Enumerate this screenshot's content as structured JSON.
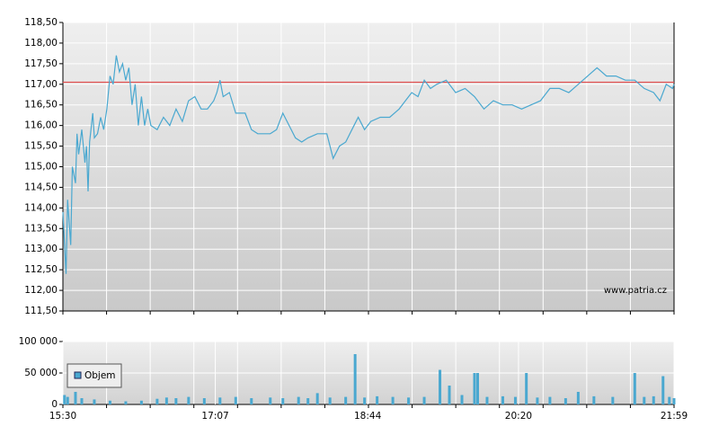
{
  "chart_data": [
    {
      "type": "line",
      "watermark": "www.patria.cz",
      "x": [
        "15:30",
        "15:32",
        "15:33",
        "15:35",
        "15:36",
        "15:38",
        "15:39",
        "15:40",
        "15:42",
        "15:44",
        "15:45",
        "15:46",
        "15:47",
        "15:49",
        "15:50",
        "15:52",
        "15:54",
        "15:56",
        "15:58",
        "16:00",
        "16:02",
        "16:04",
        "16:06",
        "16:08",
        "16:10",
        "16:12",
        "16:14",
        "16:16",
        "16:18",
        "16:20",
        "16:22",
        "16:24",
        "16:26",
        "16:30",
        "16:34",
        "16:38",
        "16:42",
        "16:46",
        "16:50",
        "16:54",
        "16:58",
        "17:02",
        "17:06",
        "17:08",
        "17:10",
        "17:12",
        "17:16",
        "17:20",
        "17:26",
        "17:30",
        "17:34",
        "17:38",
        "17:42",
        "17:46",
        "17:50",
        "17:54",
        "17:58",
        "18:02",
        "18:06",
        "18:12",
        "18:18",
        "18:22",
        "18:26",
        "18:30",
        "18:34",
        "18:38",
        "18:42",
        "18:46",
        "18:52",
        "18:58",
        "19:04",
        "19:08",
        "19:12",
        "19:16",
        "19:20",
        "19:24",
        "19:28",
        "19:34",
        "19:40",
        "19:46",
        "19:52",
        "19:58",
        "20:04",
        "20:10",
        "20:16",
        "20:22",
        "20:28",
        "20:34",
        "20:40",
        "20:46",
        "20:52",
        "20:58",
        "21:04",
        "21:10",
        "21:16",
        "21:22",
        "21:28",
        "21:34",
        "21:40",
        "21:46",
        "21:50",
        "21:54",
        "21:58",
        "21:59"
      ],
      "series": [
        {
          "color": "#4aa8d0",
          "values": [
            113.9,
            112.4,
            114.2,
            113.1,
            115.0,
            114.6,
            115.8,
            115.3,
            115.9,
            115.1,
            115.5,
            114.4,
            115.6,
            116.3,
            115.7,
            115.8,
            116.2,
            115.9,
            116.4,
            117.2,
            117.0,
            117.7,
            117.3,
            117.5,
            117.1,
            117.4,
            116.5,
            117.0,
            116.0,
            116.7,
            116.0,
            116.4,
            116.0,
            115.9,
            116.2,
            116.0,
            116.4,
            116.1,
            116.6,
            116.7,
            116.4,
            116.4,
            116.6,
            116.8,
            117.1,
            116.7,
            116.8,
            116.3,
            116.3,
            115.9,
            115.8,
            115.8,
            115.8,
            115.9,
            116.3,
            116.0,
            115.7,
            115.6,
            115.7,
            115.8,
            115.8,
            115.2,
            115.5,
            115.6,
            115.9,
            116.2,
            115.9,
            116.1,
            116.2,
            116.2,
            116.4,
            116.6,
            116.8,
            116.7,
            117.1,
            116.9,
            117.0,
            117.1,
            116.8,
            116.9,
            116.7,
            116.4,
            116.6,
            116.5,
            116.5,
            116.4,
            116.5,
            116.6,
            116.9,
            116.9,
            116.8,
            117.0,
            117.2,
            117.4,
            117.2,
            117.2,
            117.1,
            117.1,
            116.9,
            116.8,
            116.6,
            117.0,
            116.9,
            117.0
          ]
        }
      ],
      "reference_line": {
        "value": 117.05,
        "color": "#e05050"
      },
      "xlim": [
        "15:30",
        "21:59"
      ],
      "ylim": [
        111.5,
        118.5
      ],
      "yticks": [
        {
          "value": 111.5,
          "label": "111,50"
        },
        {
          "value": 112,
          "label": "112,00"
        },
        {
          "value": 112.5,
          "label": "112,50"
        },
        {
          "value": 113,
          "label": "113,00"
        },
        {
          "value": 113.5,
          "label": "113,50"
        },
        {
          "value": 114,
          "label": "114,00"
        },
        {
          "value": 114.5,
          "label": "114,50"
        },
        {
          "value": 115,
          "label": "115,00"
        },
        {
          "value": 115.5,
          "label": "115,50"
        },
        {
          "value": 116,
          "label": "116,00"
        },
        {
          "value": 116.5,
          "label": "116,50"
        },
        {
          "value": 117,
          "label": "117,00"
        },
        {
          "value": 117.5,
          "label": "117,50"
        },
        {
          "value": 118,
          "label": "118,00"
        },
        {
          "value": 118.5,
          "label": "118,50"
        }
      ],
      "grid": true
    },
    {
      "type": "bar",
      "x": [
        "15:31",
        "15:33",
        "15:38",
        "15:42",
        "15:50",
        "16:00",
        "16:10",
        "16:20",
        "16:30",
        "16:36",
        "16:42",
        "16:50",
        "17:00",
        "17:10",
        "17:20",
        "17:30",
        "17:42",
        "17:50",
        "18:00",
        "18:06",
        "18:12",
        "18:20",
        "18:30",
        "18:36",
        "18:42",
        "18:50",
        "19:00",
        "19:10",
        "19:20",
        "19:30",
        "19:36",
        "19:44",
        "19:52",
        "19:54",
        "20:00",
        "20:10",
        "20:18",
        "20:25",
        "20:32",
        "20:40",
        "20:50",
        "20:58",
        "21:08",
        "21:20",
        "21:34",
        "21:40",
        "21:46",
        "21:52",
        "21:56",
        "21:59"
      ],
      "series": [
        {
          "name": "Objem",
          "color": "#4aa8d0",
          "values": [
            15000,
            12000,
            20000,
            10000,
            8000,
            6000,
            5000,
            6000,
            9000,
            11000,
            10000,
            12000,
            10000,
            11000,
            12000,
            10000,
            11000,
            10000,
            12000,
            10000,
            18000,
            11000,
            12000,
            80000,
            11000,
            13000,
            12000,
            11000,
            12000,
            55000,
            30000,
            15000,
            50000,
            50000,
            12000,
            13000,
            12000,
            50000,
            11000,
            12000,
            10000,
            20000,
            13000,
            12000,
            50000,
            12000,
            13000,
            45000,
            12000,
            10000
          ]
        }
      ],
      "xlim": [
        "15:30",
        "21:59"
      ],
      "xticks": [
        "15:30",
        "17:07",
        "18:44",
        "20:20",
        "21:59"
      ],
      "ylim": [
        0,
        100000
      ],
      "yticks": [
        0,
        {
          "value": 50000,
          "label": "50 000"
        },
        {
          "value": 100000,
          "label": "100 000"
        }
      ],
      "grid": true
    }
  ]
}
